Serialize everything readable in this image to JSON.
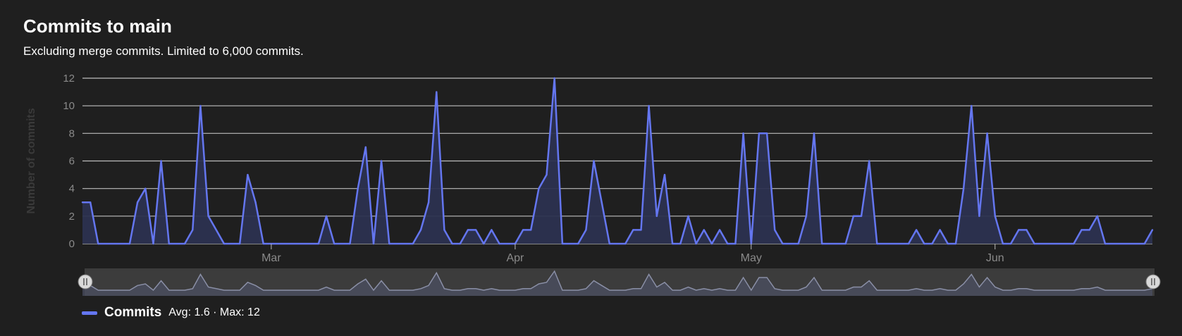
{
  "title": "Commits to main",
  "subtitle": "Excluding merge commits. Limited to 6,000 commits.",
  "colors": {
    "background": "#1f1f1f",
    "line": "#6476f0",
    "area": "#2c3150",
    "grid": "#bdbdbd",
    "navigator_bg": "#3c3c3c",
    "navigator_line": "#8a8fa6"
  },
  "legend": {
    "name": "Commits",
    "stats": "Avg: 1.6 · Max: 12"
  },
  "chart_data": {
    "type": "area",
    "title": "Commits to main",
    "subtitle": "Excluding merge commits. Limited to 6,000 commits.",
    "ylabel": "Number of commits",
    "xlabel": "",
    "ylim": [
      0,
      12
    ],
    "y_ticks": [
      0,
      2,
      4,
      6,
      8,
      10,
      12
    ],
    "x_range": [
      "2024-02-06",
      "2024-06-21"
    ],
    "x_ticks": [
      {
        "date": "2024-03-01",
        "label": "Mar"
      },
      {
        "date": "2024-04-01",
        "label": "Apr"
      },
      {
        "date": "2024-05-01",
        "label": "May"
      },
      {
        "date": "2024-06-01",
        "label": "Jun"
      }
    ],
    "grid": true,
    "legend_position": "bottom-left",
    "navigator": true,
    "series": [
      {
        "name": "Commits",
        "points": [
          [
            "2024-02-06",
            3
          ],
          [
            "2024-02-07",
            3
          ],
          [
            "2024-02-08",
            0
          ],
          [
            "2024-02-12",
            0
          ],
          [
            "2024-02-13",
            3
          ],
          [
            "2024-02-14",
            4
          ],
          [
            "2024-02-15",
            0
          ],
          [
            "2024-02-16",
            6
          ],
          [
            "2024-02-17",
            0
          ],
          [
            "2024-02-19",
            0
          ],
          [
            "2024-02-20",
            1
          ],
          [
            "2024-02-21",
            10
          ],
          [
            "2024-02-22",
            2
          ],
          [
            "2024-02-24",
            0
          ],
          [
            "2024-02-26",
            0
          ],
          [
            "2024-02-27",
            5
          ],
          [
            "2024-02-28",
            3
          ],
          [
            "2024-02-29",
            0
          ],
          [
            "2024-03-07",
            0
          ],
          [
            "2024-03-08",
            2
          ],
          [
            "2024-03-09",
            0
          ],
          [
            "2024-03-11",
            0
          ],
          [
            "2024-03-12",
            4
          ],
          [
            "2024-03-13",
            7
          ],
          [
            "2024-03-14",
            0
          ],
          [
            "2024-03-15",
            6
          ],
          [
            "2024-03-16",
            0
          ],
          [
            "2024-03-19",
            0
          ],
          [
            "2024-03-20",
            1
          ],
          [
            "2024-03-21",
            3
          ],
          [
            "2024-03-22",
            11
          ],
          [
            "2024-03-23",
            1
          ],
          [
            "2024-03-24",
            0
          ],
          [
            "2024-03-25",
            0
          ],
          [
            "2024-03-26",
            1
          ],
          [
            "2024-03-27",
            1
          ],
          [
            "2024-03-28",
            0
          ],
          [
            "2024-03-29",
            1
          ],
          [
            "2024-03-30",
            0
          ],
          [
            "2024-04-01",
            0
          ],
          [
            "2024-04-02",
            1
          ],
          [
            "2024-04-03",
            1
          ],
          [
            "2024-04-04",
            4
          ],
          [
            "2024-04-05",
            5
          ],
          [
            "2024-04-06",
            12
          ],
          [
            "2024-04-07",
            0
          ],
          [
            "2024-04-09",
            0
          ],
          [
            "2024-04-10",
            1
          ],
          [
            "2024-04-11",
            6
          ],
          [
            "2024-04-12",
            3
          ],
          [
            "2024-04-13",
            0
          ],
          [
            "2024-04-15",
            0
          ],
          [
            "2024-04-16",
            1
          ],
          [
            "2024-04-17",
            1
          ],
          [
            "2024-04-18",
            10
          ],
          [
            "2024-04-19",
            2
          ],
          [
            "2024-04-20",
            5
          ],
          [
            "2024-04-21",
            0
          ],
          [
            "2024-04-22",
            0
          ],
          [
            "2024-04-23",
            2
          ],
          [
            "2024-04-24",
            0
          ],
          [
            "2024-04-25",
            1
          ],
          [
            "2024-04-26",
            0
          ],
          [
            "2024-04-27",
            1
          ],
          [
            "2024-04-28",
            0
          ],
          [
            "2024-04-29",
            0
          ],
          [
            "2024-04-30",
            8
          ],
          [
            "2024-05-01",
            0
          ],
          [
            "2024-05-02",
            8
          ],
          [
            "2024-05-03",
            8
          ],
          [
            "2024-05-04",
            1
          ],
          [
            "2024-05-05",
            0
          ],
          [
            "2024-05-07",
            0
          ],
          [
            "2024-05-08",
            2
          ],
          [
            "2024-05-09",
            8
          ],
          [
            "2024-05-10",
            0
          ],
          [
            "2024-05-13",
            0
          ],
          [
            "2024-05-14",
            2
          ],
          [
            "2024-05-15",
            2
          ],
          [
            "2024-05-16",
            6
          ],
          [
            "2024-05-17",
            0
          ],
          [
            "2024-05-21",
            0
          ],
          [
            "2024-05-22",
            1
          ],
          [
            "2024-05-23",
            0
          ],
          [
            "2024-05-24",
            0
          ],
          [
            "2024-05-25",
            1
          ],
          [
            "2024-05-26",
            0
          ],
          [
            "2024-05-27",
            0
          ],
          [
            "2024-05-28",
            4
          ],
          [
            "2024-05-29",
            10
          ],
          [
            "2024-05-30",
            2
          ],
          [
            "2024-05-31",
            8
          ],
          [
            "2024-06-01",
            2
          ],
          [
            "2024-06-02",
            0
          ],
          [
            "2024-06-03",
            0
          ],
          [
            "2024-06-04",
            1
          ],
          [
            "2024-06-05",
            1
          ],
          [
            "2024-06-06",
            0
          ],
          [
            "2024-06-11",
            0
          ],
          [
            "2024-06-12",
            1
          ],
          [
            "2024-06-13",
            1
          ],
          [
            "2024-06-14",
            2
          ],
          [
            "2024-06-15",
            0
          ],
          [
            "2024-06-20",
            0
          ],
          [
            "2024-06-21",
            1
          ]
        ]
      }
    ]
  }
}
